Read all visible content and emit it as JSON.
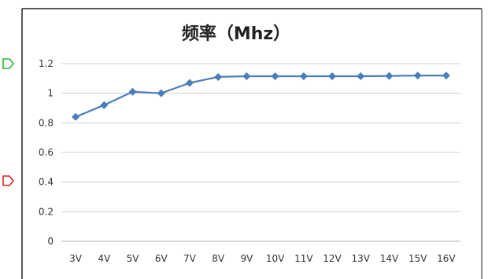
{
  "chart_data": {
    "type": "line",
    "title": "频率（Mhz）",
    "xlabel": "",
    "ylabel": "",
    "categories": [
      "3V",
      "4V",
      "5V",
      "6V",
      "7V",
      "8V",
      "9V",
      "10V",
      "11V",
      "12V",
      "13V",
      "14V",
      "15V",
      "16V"
    ],
    "series": [
      {
        "values": [
          0.84,
          0.92,
          1.01,
          1.0,
          1.07,
          1.11,
          1.115,
          1.115,
          1.115,
          1.115,
          1.115,
          1.117,
          1.12,
          1.12
        ]
      }
    ],
    "ylim": [
      0,
      1.2
    ],
    "yticks": [
      "0",
      "0.2",
      "0.4",
      "0.6",
      "0.8",
      "1",
      "1.2"
    ],
    "grid": true,
    "legend": "none",
    "colors": {
      "line": "#4a7ebb",
      "grid": "#d0d0d0",
      "marker_green": "#2bb52b",
      "marker_red": "#e02020",
      "frame": "#222222"
    }
  }
}
